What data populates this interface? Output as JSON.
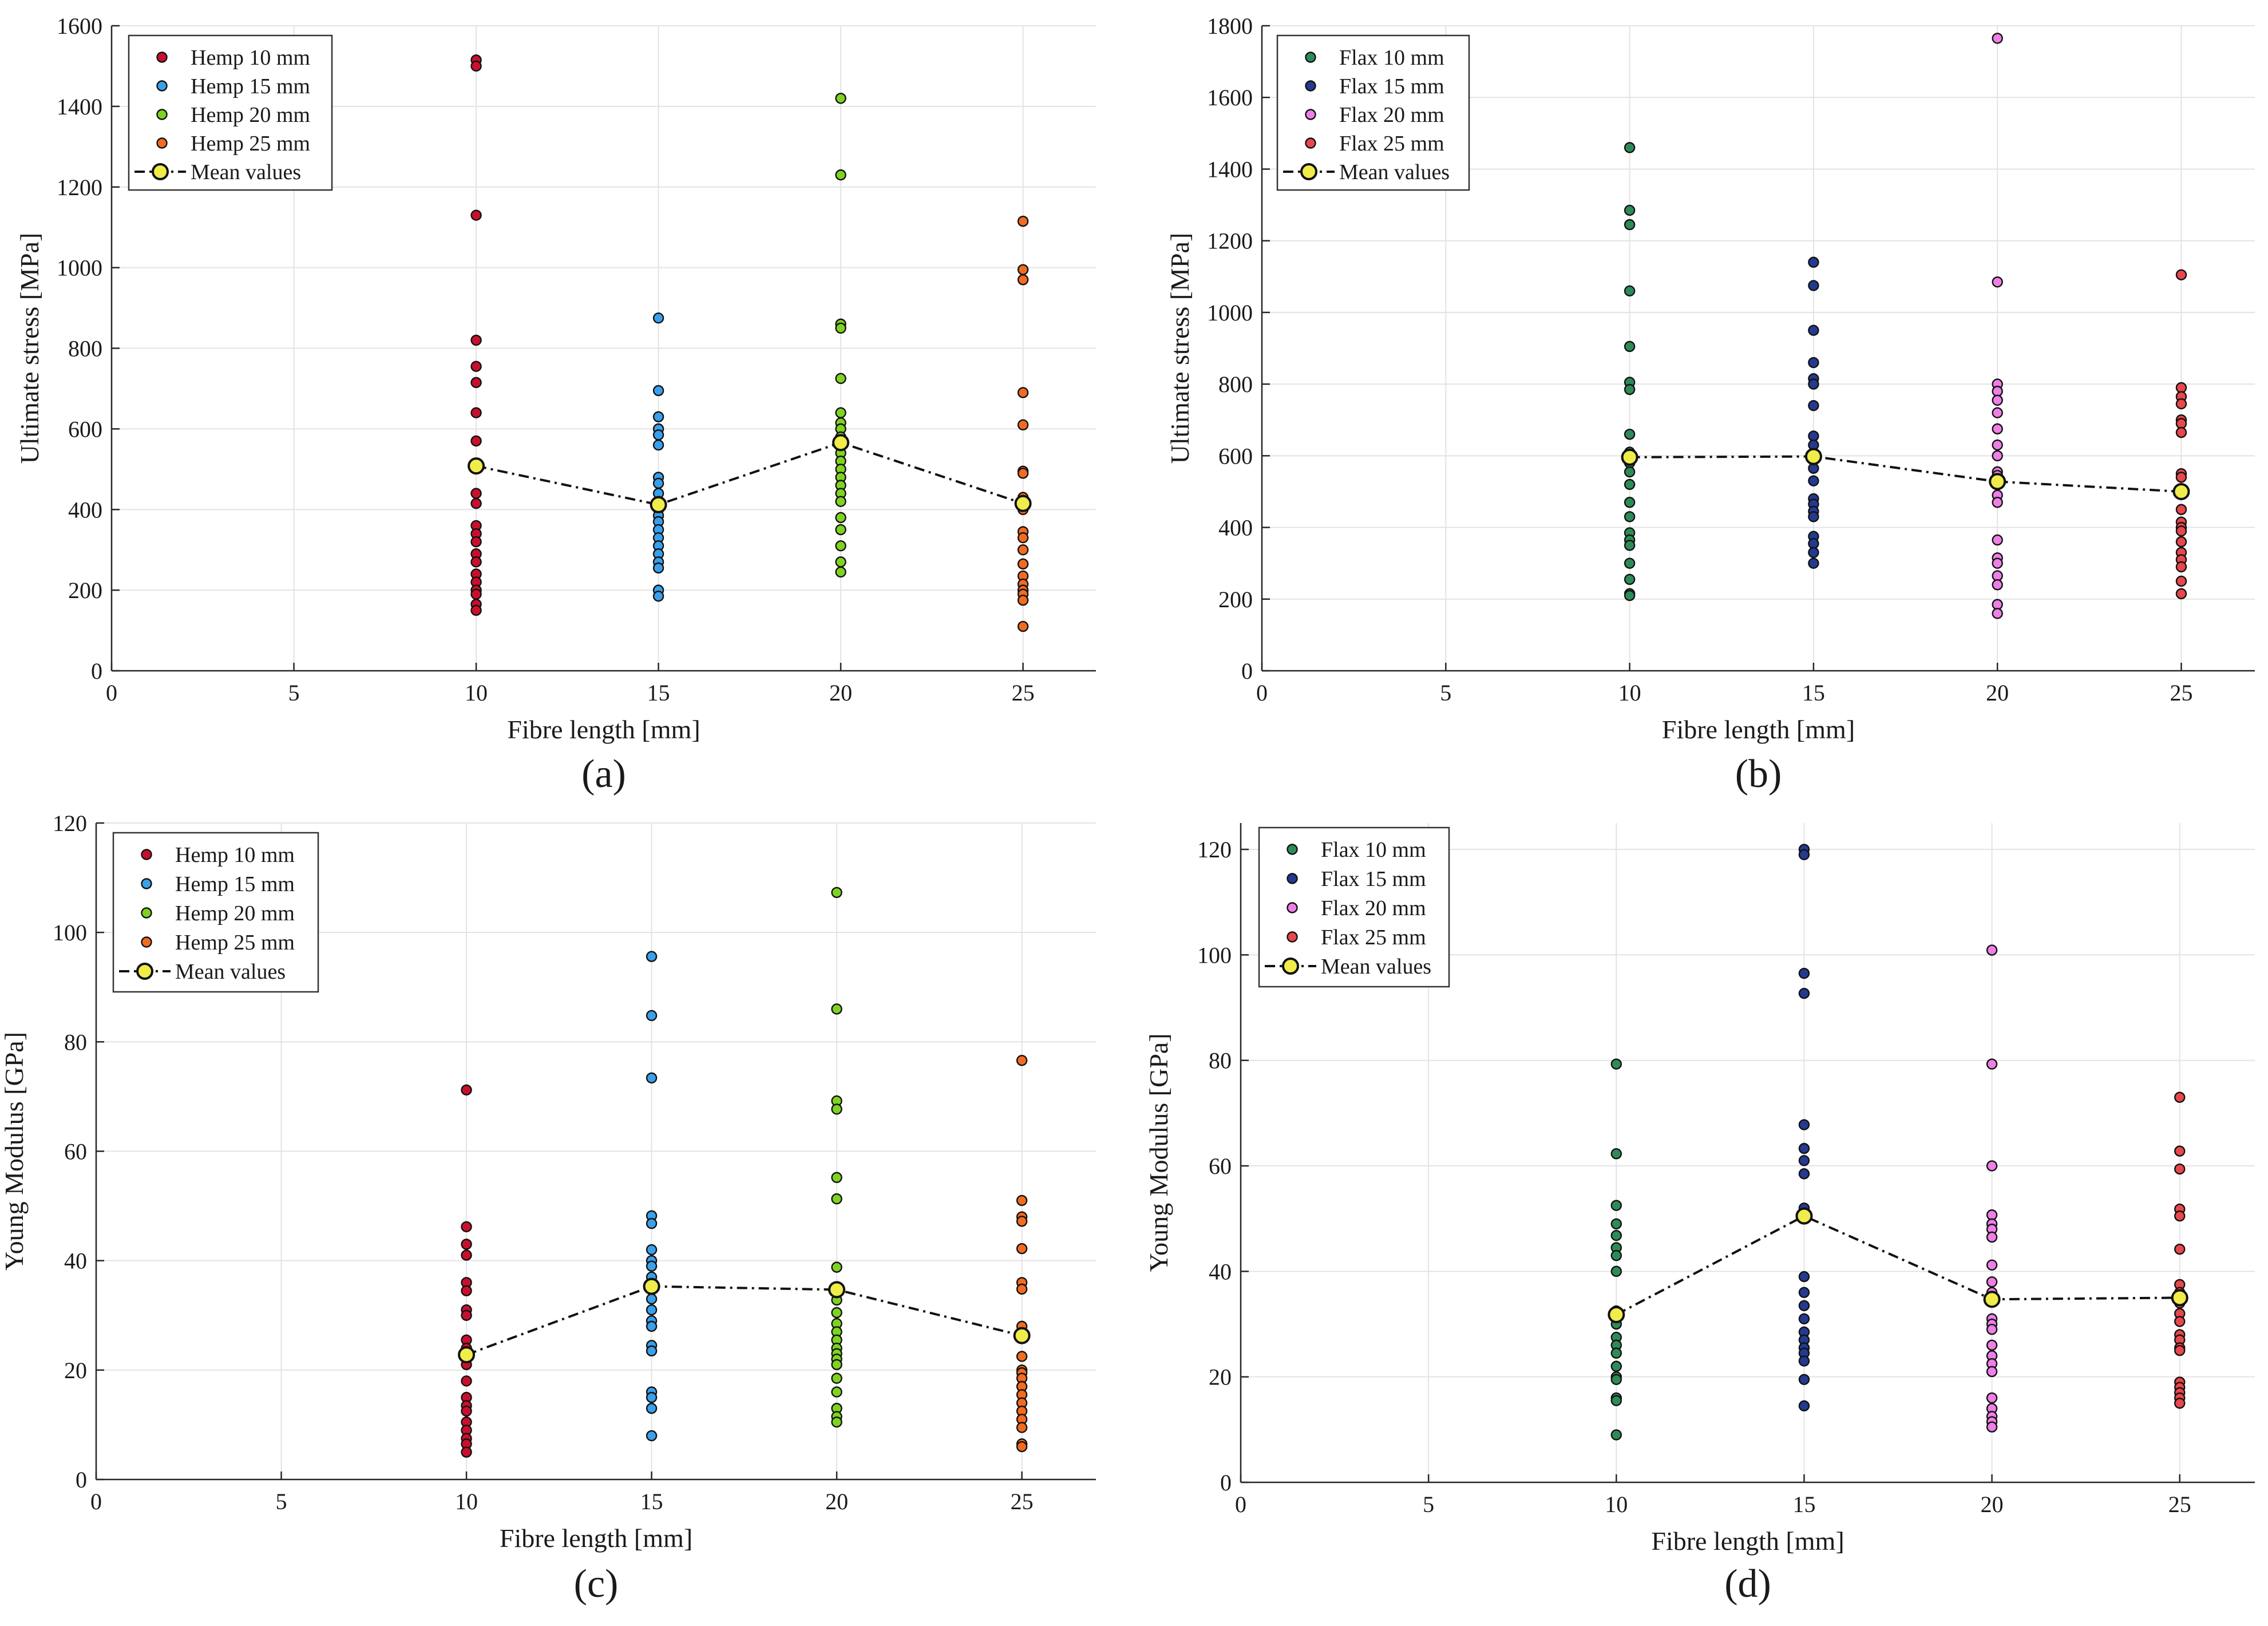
{
  "colors": {
    "hemp10": "#c8102e",
    "hemp15": "#3aa0ea",
    "hemp20": "#7ed321",
    "hemp25": "#f26b21",
    "flax10": "#2e8b57",
    "flax15": "#243a8f",
    "flax20": "#ee7fe6",
    "flax25": "#e8474c",
    "mean": "#f0ec4a"
  },
  "chart_data": [
    {
      "id": "a",
      "type": "scatter",
      "panel_label": "(a)",
      "xlabel": "Fibre length [mm]",
      "ylabel": "Ultimate stress [MPa]",
      "xlim": [
        0,
        27
      ],
      "ylim": [
        0,
        1600
      ],
      "xticks": [
        0,
        5,
        10,
        15,
        20,
        25
      ],
      "yticks": [
        0,
        200,
        400,
        600,
        800,
        1000,
        1200,
        1400,
        1600
      ],
      "grid": true,
      "legend_position": "top-left",
      "series": [
        {
          "name": "Hemp 10 mm",
          "color_key": "hemp10",
          "x": 10,
          "values": [
            1515,
            1500,
            1130,
            820,
            755,
            715,
            640,
            570,
            510,
            440,
            415,
            360,
            340,
            320,
            290,
            270,
            240,
            220,
            200,
            190,
            165,
            150
          ]
        },
        {
          "name": "Hemp 15 mm",
          "color_key": "hemp15",
          "x": 15,
          "values": [
            875,
            695,
            630,
            600,
            585,
            560,
            480,
            465,
            440,
            420,
            400,
            385,
            370,
            350,
            330,
            310,
            290,
            270,
            255,
            200,
            185
          ]
        },
        {
          "name": "Hemp 20 mm",
          "color_key": "hemp20",
          "x": 20,
          "values": [
            1420,
            1230,
            860,
            850,
            725,
            640,
            615,
            600,
            580,
            560,
            540,
            520,
            500,
            480,
            460,
            440,
            420,
            380,
            350,
            310,
            270,
            245
          ]
        },
        {
          "name": "Hemp 25 mm",
          "color_key": "hemp25",
          "x": 25,
          "values": [
            1115,
            995,
            970,
            690,
            610,
            495,
            490,
            430,
            420,
            400,
            345,
            330,
            300,
            265,
            235,
            215,
            200,
            190,
            175,
            110
          ]
        }
      ],
      "mean": {
        "name": "Mean values",
        "x": [
          10,
          15,
          20,
          25
        ],
        "values": [
          508,
          412,
          566,
          415
        ]
      }
    },
    {
      "id": "b",
      "type": "scatter",
      "panel_label": "(b)",
      "xlabel": "Fibre length [mm]",
      "ylabel": "Ultimate stress [MPa]",
      "xlim": [
        0,
        27
      ],
      "ylim": [
        0,
        1800
      ],
      "xticks": [
        0,
        5,
        10,
        15,
        20,
        25
      ],
      "yticks": [
        0,
        200,
        400,
        600,
        800,
        1000,
        1200,
        1400,
        1600,
        1800
      ],
      "grid": true,
      "legend_position": "top-left",
      "series": [
        {
          "name": "Flax 10 mm",
          "color_key": "flax10",
          "x": 10,
          "values": [
            1460,
            1285,
            1245,
            1060,
            905,
            805,
            785,
            660,
            610,
            580,
            555,
            520,
            470,
            430,
            385,
            365,
            350,
            300,
            255,
            215,
            210
          ]
        },
        {
          "name": "Flax 15 mm",
          "color_key": "flax15",
          "x": 15,
          "values": [
            1140,
            1075,
            950,
            860,
            815,
            800,
            740,
            655,
            630,
            600,
            590,
            565,
            530,
            480,
            465,
            445,
            430,
            375,
            355,
            330,
            300
          ]
        },
        {
          "name": "Flax 20 mm",
          "color_key": "flax20",
          "x": 20,
          "values": [
            1765,
            1085,
            800,
            780,
            755,
            720,
            675,
            630,
            600,
            555,
            545,
            530,
            490,
            470,
            365,
            315,
            300,
            265,
            240,
            185,
            160
          ]
        },
        {
          "name": "Flax 25 mm",
          "color_key": "flax25",
          "x": 25,
          "values": [
            1105,
            790,
            765,
            745,
            700,
            690,
            665,
            550,
            540,
            500,
            450,
            415,
            400,
            390,
            360,
            330,
            310,
            290,
            250,
            215
          ]
        }
      ],
      "mean": {
        "name": "Mean values",
        "x": [
          10,
          15,
          20,
          25
        ],
        "values": [
          596,
          598,
          528,
          500
        ]
      }
    },
    {
      "id": "c",
      "type": "scatter",
      "panel_label": "(c)",
      "xlabel": "Fibre length [mm]",
      "ylabel": "Young Modulus [GPa]",
      "xlim": [
        0,
        27
      ],
      "ylim": [
        0,
        120
      ],
      "xticks": [
        0,
        5,
        10,
        15,
        20,
        25
      ],
      "yticks": [
        0,
        20,
        40,
        60,
        80,
        100,
        120
      ],
      "grid": true,
      "legend_position": "top-left",
      "series": [
        {
          "name": "Hemp 10 mm",
          "color_key": "hemp10",
          "x": 10,
          "values": [
            71.2,
            46.2,
            43,
            41,
            36,
            34.5,
            31,
            30,
            25.5,
            24,
            21,
            18,
            15,
            13.5,
            12.5,
            10.5,
            9,
            7.5,
            6.5,
            5
          ]
        },
        {
          "name": "Hemp 15 mm",
          "color_key": "hemp15",
          "x": 15,
          "values": [
            95.6,
            84.8,
            73.4,
            48.2,
            46.8,
            42,
            40,
            39,
            37,
            35,
            33,
            31,
            29,
            28,
            24.5,
            23.5,
            16,
            15,
            13,
            8
          ]
        },
        {
          "name": "Hemp 20 mm",
          "color_key": "hemp20",
          "x": 20,
          "values": [
            107.3,
            86,
            69.2,
            67.7,
            55.2,
            51.3,
            38.8,
            35,
            32.8,
            30.5,
            28.5,
            27,
            25.5,
            24,
            23,
            22,
            21,
            18.5,
            16,
            13,
            11.5,
            10.5
          ]
        },
        {
          "name": "Hemp 25 mm",
          "color_key": "hemp25",
          "x": 25,
          "values": [
            76.6,
            51,
            48,
            47.2,
            42.2,
            36,
            34.8,
            28,
            26.5,
            22.5,
            20,
            19.5,
            18.5,
            17,
            15.5,
            14,
            12.5,
            11,
            9.5,
            6.5,
            6
          ]
        }
      ],
      "mean": {
        "name": "Mean values",
        "x": [
          10,
          15,
          20,
          25
        ],
        "values": [
          22.8,
          35.3,
          34.7,
          26.3
        ]
      }
    },
    {
      "id": "d",
      "type": "scatter",
      "panel_label": "(d)",
      "xlabel": "Fibre length [mm]",
      "ylabel": "Young Modulus [GPa]",
      "xlim": [
        0,
        27
      ],
      "ylim": [
        0,
        125
      ],
      "xticks": [
        0,
        5,
        10,
        15,
        20,
        25
      ],
      "yticks": [
        0,
        20,
        40,
        60,
        80,
        100,
        120
      ],
      "grid": true,
      "legend_position": "top-left",
      "series": [
        {
          "name": "Flax 10 mm",
          "color_key": "flax10",
          "x": 10,
          "values": [
            79.3,
            62.3,
            52.5,
            49,
            46.8,
            44.5,
            43,
            40,
            32.5,
            30,
            27.5,
            26,
            24.5,
            22,
            20,
            19.5,
            16,
            15.5,
            9
          ]
        },
        {
          "name": "Flax 15 mm",
          "color_key": "flax15",
          "x": 15,
          "values": [
            120,
            119,
            96.5,
            92.7,
            67.8,
            63.3,
            61,
            58.5,
            52,
            51,
            39,
            36,
            33.5,
            31,
            28.5,
            27,
            25.5,
            24.5,
            23,
            19.5,
            14.5
          ]
        },
        {
          "name": "Flax 20 mm",
          "color_key": "flax20",
          "x": 20,
          "values": [
            100.9,
            79.3,
            60,
            50.7,
            49,
            48,
            46.5,
            41.2,
            38,
            36,
            31,
            30,
            29,
            26,
            24,
            22.5,
            21,
            16,
            14,
            12.5,
            11.5,
            10.5
          ]
        },
        {
          "name": "Flax 25 mm",
          "color_key": "flax25",
          "x": 25,
          "values": [
            73,
            62.8,
            59.4,
            51.8,
            50.5,
            44.2,
            37.5,
            36,
            34,
            32,
            30.5,
            28,
            27,
            25.5,
            25,
            19,
            18,
            17,
            16,
            15
          ]
        }
      ],
      "mean": {
        "name": "Mean values",
        "x": [
          10,
          15,
          20,
          25
        ],
        "values": [
          31.8,
          50.5,
          34.7,
          35
        ]
      }
    }
  ]
}
